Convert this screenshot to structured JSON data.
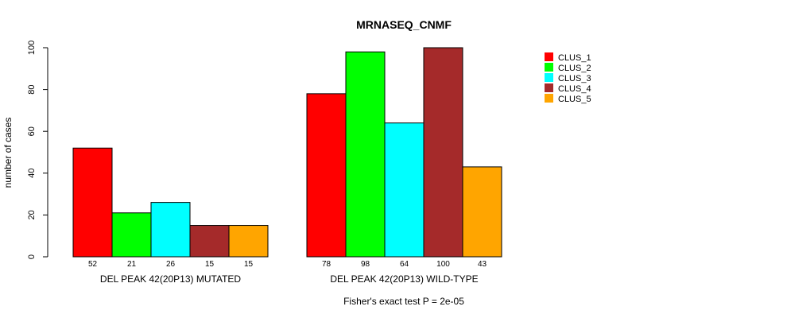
{
  "chart_data": {
    "type": "bar",
    "title": "MRNASEQ_CNMF",
    "ylabel": "number of cases",
    "xlabel": "",
    "ylim": [
      0,
      100
    ],
    "yticks": [
      0,
      20,
      40,
      60,
      80,
      100
    ],
    "grid": false,
    "legend_position": "top-right",
    "groups": [
      "DEL PEAK 42(20P13) MUTATED",
      "DEL PEAK 42(20P13) WILD-TYPE"
    ],
    "series": [
      {
        "name": "CLUS_1",
        "color": "#ff0000",
        "values": [
          52,
          78
        ]
      },
      {
        "name": "CLUS_2",
        "color": "#00ff00",
        "values": [
          21,
          98
        ]
      },
      {
        "name": "CLUS_3",
        "color": "#00ffff",
        "values": [
          26,
          64
        ]
      },
      {
        "name": "CLUS_4",
        "color": "#a52a2a",
        "values": [
          15,
          100
        ]
      },
      {
        "name": "CLUS_5",
        "color": "#ffa500",
        "values": [
          15,
          43
        ]
      }
    ],
    "annotation": "Fisher's exact test P = 2e-05"
  }
}
